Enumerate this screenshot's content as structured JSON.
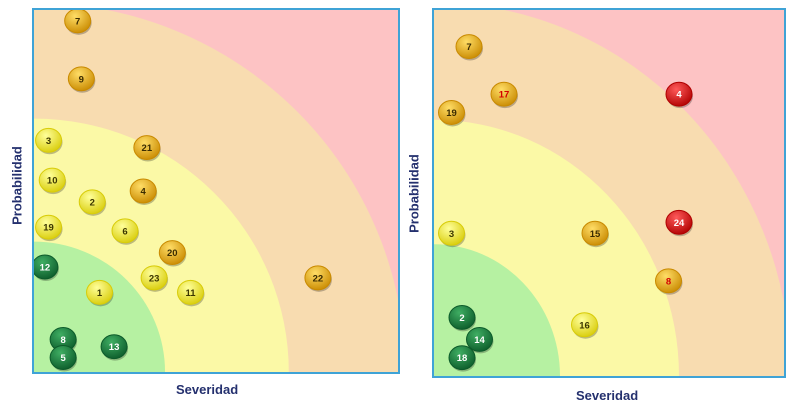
{
  "colors": {
    "zone_green": "#b6f1a2",
    "zone_yellow": "#fbf9a6",
    "zone_orange": "#f8dcb0",
    "zone_red": "#fdc3c4",
    "axis_label": "#24306e",
    "frame": "#3fa3d6"
  },
  "chart_data": [
    {
      "type": "scatter",
      "title": "",
      "xlabel": "Severidad",
      "ylabel": "Probabilidad",
      "xlim": [
        0,
        100
      ],
      "ylim": [
        0,
        100
      ],
      "grid": false,
      "background_zones": [
        "green",
        "yellow",
        "orange",
        "red"
      ],
      "points": [
        {
          "label": "7",
          "x": 12,
          "y": 97,
          "color": "orange"
        },
        {
          "label": "9",
          "x": 13,
          "y": 81,
          "color": "orange"
        },
        {
          "label": "3",
          "x": 4,
          "y": 64,
          "color": "yellow"
        },
        {
          "label": "21",
          "x": 31,
          "y": 62,
          "color": "orange"
        },
        {
          "label": "10",
          "x": 5,
          "y": 53,
          "color": "yellow"
        },
        {
          "label": "4",
          "x": 30,
          "y": 50,
          "color": "orange"
        },
        {
          "label": "2",
          "x": 16,
          "y": 47,
          "color": "yellow"
        },
        {
          "label": "19",
          "x": 4,
          "y": 40,
          "color": "yellow"
        },
        {
          "label": "6",
          "x": 25,
          "y": 39,
          "color": "yellow"
        },
        {
          "label": "20",
          "x": 38,
          "y": 33,
          "color": "orange"
        },
        {
          "label": "12",
          "x": 3,
          "y": 29,
          "color": "green"
        },
        {
          "label": "23",
          "x": 33,
          "y": 26,
          "color": "yellow"
        },
        {
          "label": "22",
          "x": 78,
          "y": 26,
          "color": "orange"
        },
        {
          "label": "1",
          "x": 18,
          "y": 22,
          "color": "yellow"
        },
        {
          "label": "11",
          "x": 43,
          "y": 22,
          "color": "yellow"
        },
        {
          "label": "8",
          "x": 8,
          "y": 9,
          "color": "green"
        },
        {
          "label": "13",
          "x": 22,
          "y": 7,
          "color": "green"
        },
        {
          "label": "5",
          "x": 8,
          "y": 4,
          "color": "green"
        }
      ]
    },
    {
      "type": "scatter",
      "title": "",
      "xlabel": "Severidad",
      "ylabel": "Probabilidad",
      "xlim": [
        0,
        100
      ],
      "ylim": [
        0,
        100
      ],
      "grid": false,
      "background_zones": [
        "green",
        "yellow",
        "orange",
        "red"
      ],
      "points": [
        {
          "label": "7",
          "x": 10,
          "y": 90,
          "color": "orange"
        },
        {
          "label": "17",
          "x": 20,
          "y": 77,
          "color": "orange"
        },
        {
          "label": "4",
          "x": 70,
          "y": 77,
          "color": "red"
        },
        {
          "label": "19",
          "x": 5,
          "y": 72,
          "color": "orange"
        },
        {
          "label": "24",
          "x": 70,
          "y": 42,
          "color": "red"
        },
        {
          "label": "3",
          "x": 5,
          "y": 39,
          "color": "yellow"
        },
        {
          "label": "15",
          "x": 46,
          "y": 39,
          "color": "orange"
        },
        {
          "label": "8",
          "x": 67,
          "y": 26,
          "color": "orange"
        },
        {
          "label": "2",
          "x": 8,
          "y": 16,
          "color": "green"
        },
        {
          "label": "16",
          "x": 43,
          "y": 14,
          "color": "yellow"
        },
        {
          "label": "14",
          "x": 13,
          "y": 10,
          "color": "green"
        },
        {
          "label": "18",
          "x": 8,
          "y": 5,
          "color": "green"
        }
      ]
    }
  ]
}
